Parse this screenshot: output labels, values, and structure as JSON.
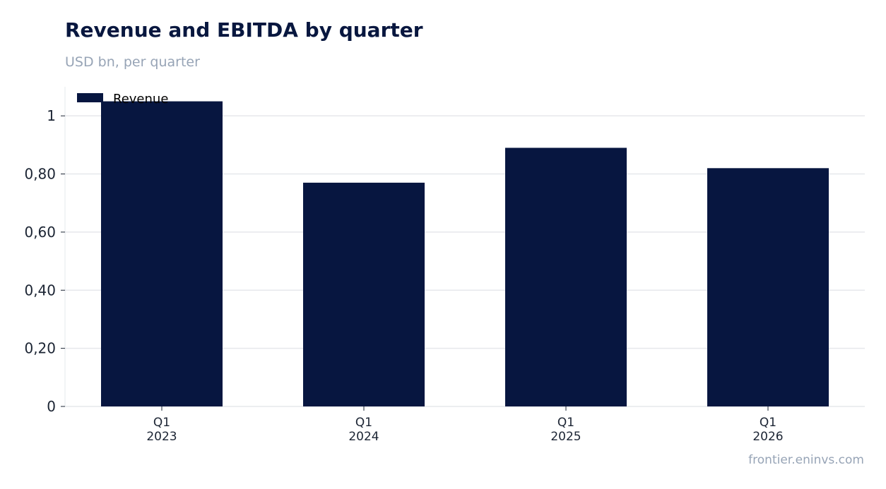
{
  "chart_data": {
    "type": "bar",
    "title": "Revenue and EBITDA by quarter",
    "subtitle": "USD bn, per quarter",
    "categories": [
      [
        "Q1",
        "2023"
      ],
      [
        "Q1",
        "2024"
      ],
      [
        "Q1",
        "2025"
      ],
      [
        "Q1",
        "2026"
      ]
    ],
    "series": [
      {
        "name": "Revenue",
        "values": [
          1.05,
          0.77,
          0.89,
          0.82
        ],
        "color": "#071640"
      }
    ],
    "ylim": [
      0,
      1.1
    ],
    "yticks": [
      0,
      0.2,
      0.4,
      0.6,
      0.8,
      1
    ],
    "ytick_labels": [
      "0",
      "0,20",
      "0,40",
      "0,60",
      "0,80",
      "1"
    ],
    "grid": true,
    "legend_position": "top-left"
  },
  "source": "frontier.eninvs.com"
}
